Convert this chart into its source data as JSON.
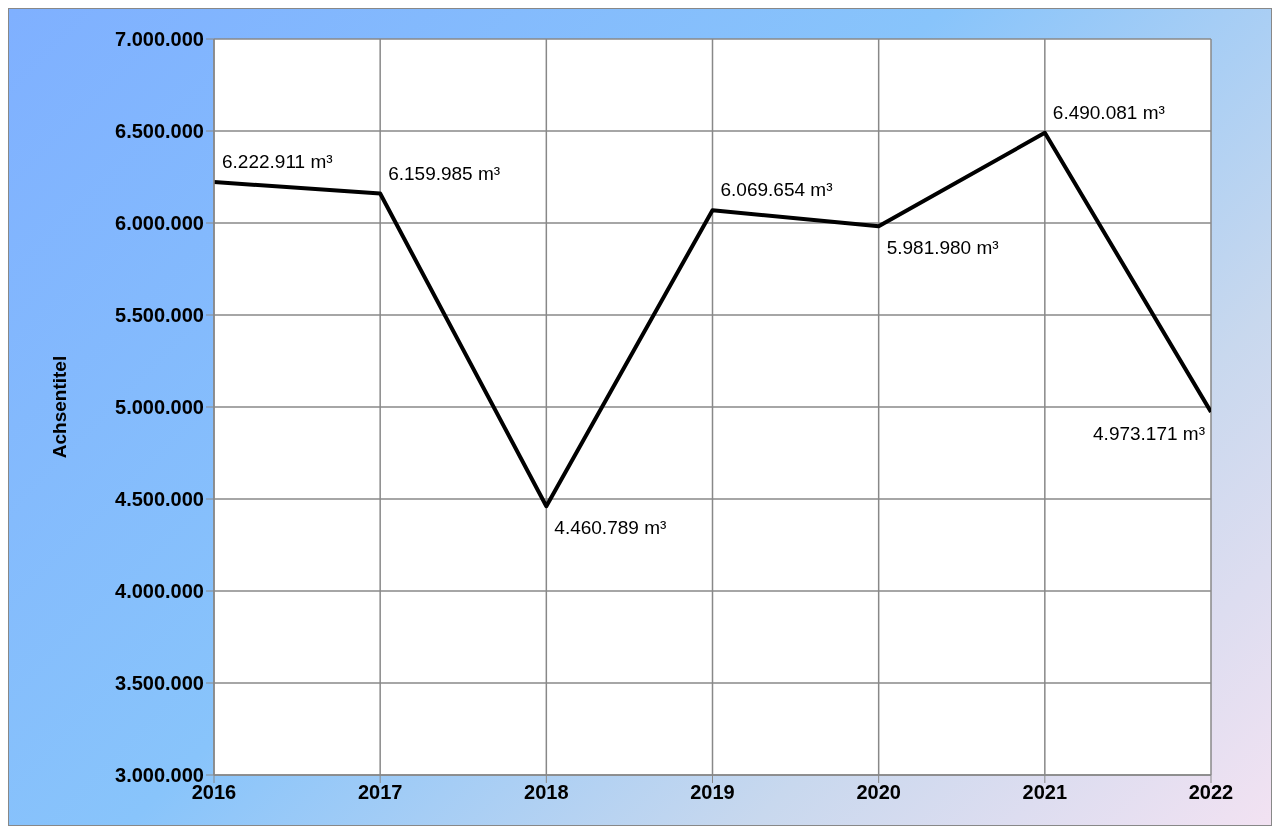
{
  "chart_data": {
    "type": "line",
    "ylabel": "Achsentitel",
    "categories": [
      "2016",
      "2017",
      "2018",
      "2019",
      "2020",
      "2021",
      "2022"
    ],
    "series": [
      {
        "color": "#000000",
        "values": [
          6222911,
          6159985,
          4460789,
          6069654,
          5981980,
          6490081,
          4973171
        ],
        "value_labels": [
          "6.222.911 m³",
          "6.159.985 m³",
          "4.460.789 m³",
          "6.069.654 m³",
          "5.981.980 m³",
          "6.490.081 m³",
          "4.973.171 m³"
        ]
      }
    ],
    "ylim": [
      3000000,
      7000000
    ],
    "yticks": [
      {
        "value": 3000000,
        "label": "3.000.000"
      },
      {
        "value": 3500000,
        "label": "3.500.000"
      },
      {
        "value": 4000000,
        "label": "4.000.000"
      },
      {
        "value": 4500000,
        "label": "4.500.000"
      },
      {
        "value": 5000000,
        "label": "5.000.000"
      },
      {
        "value": 5500000,
        "label": "5.500.000"
      },
      {
        "value": 6000000,
        "label": "6.000.000"
      },
      {
        "value": 6500000,
        "label": "6.500.000"
      },
      {
        "value": 7000000,
        "label": "7.000.000"
      }
    ],
    "grid": true,
    "marker": "none",
    "line_style": "solid"
  }
}
